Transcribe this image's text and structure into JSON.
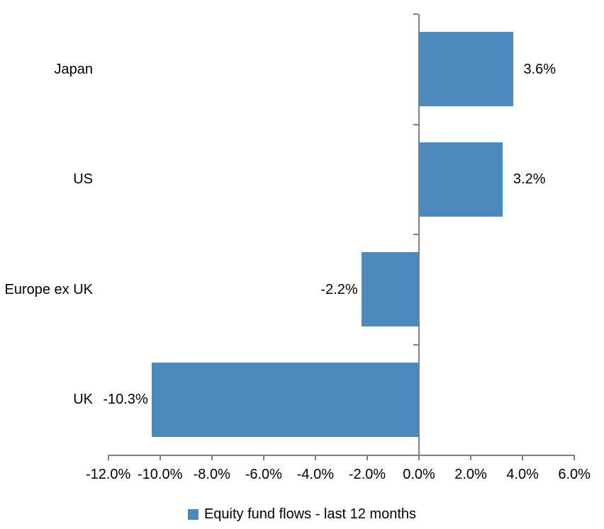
{
  "chart_data": {
    "type": "bar",
    "orientation": "horizontal",
    "title": "",
    "categories": [
      "Japan",
      "US",
      "Europe ex UK",
      "UK"
    ],
    "series": [
      {
        "name": "Equity fund flows - last 12 months",
        "values": [
          3.6,
          3.2,
          -2.2,
          -10.3
        ],
        "data_labels": [
          "3.6%",
          "3.2%",
          "-2.2%",
          "-10.3%"
        ]
      }
    ],
    "xlabel": "",
    "ylabel": "",
    "xlim": [
      -12,
      6
    ],
    "x_tick_values": [
      -12,
      -10,
      -8,
      -6,
      -4,
      -2,
      0,
      2,
      4,
      6
    ],
    "x_tick_labels": [
      "-12.0%",
      "-10.0%",
      "-8.0%",
      "-6.0%",
      "-4.0%",
      "-2.0%",
      "0.0%",
      "2.0%",
      "4.0%",
      "6.0%"
    ],
    "grid": "off",
    "legend_position": "bottom",
    "colors": {
      "bar": "#4C8ABE",
      "axis": "#808080",
      "text": "#000000",
      "background": "#FFFFFF"
    }
  },
  "legend": {
    "items": [
      {
        "label": "Equity fund flows - last 12 months",
        "marker_color": "#4C8ABE"
      }
    ]
  }
}
